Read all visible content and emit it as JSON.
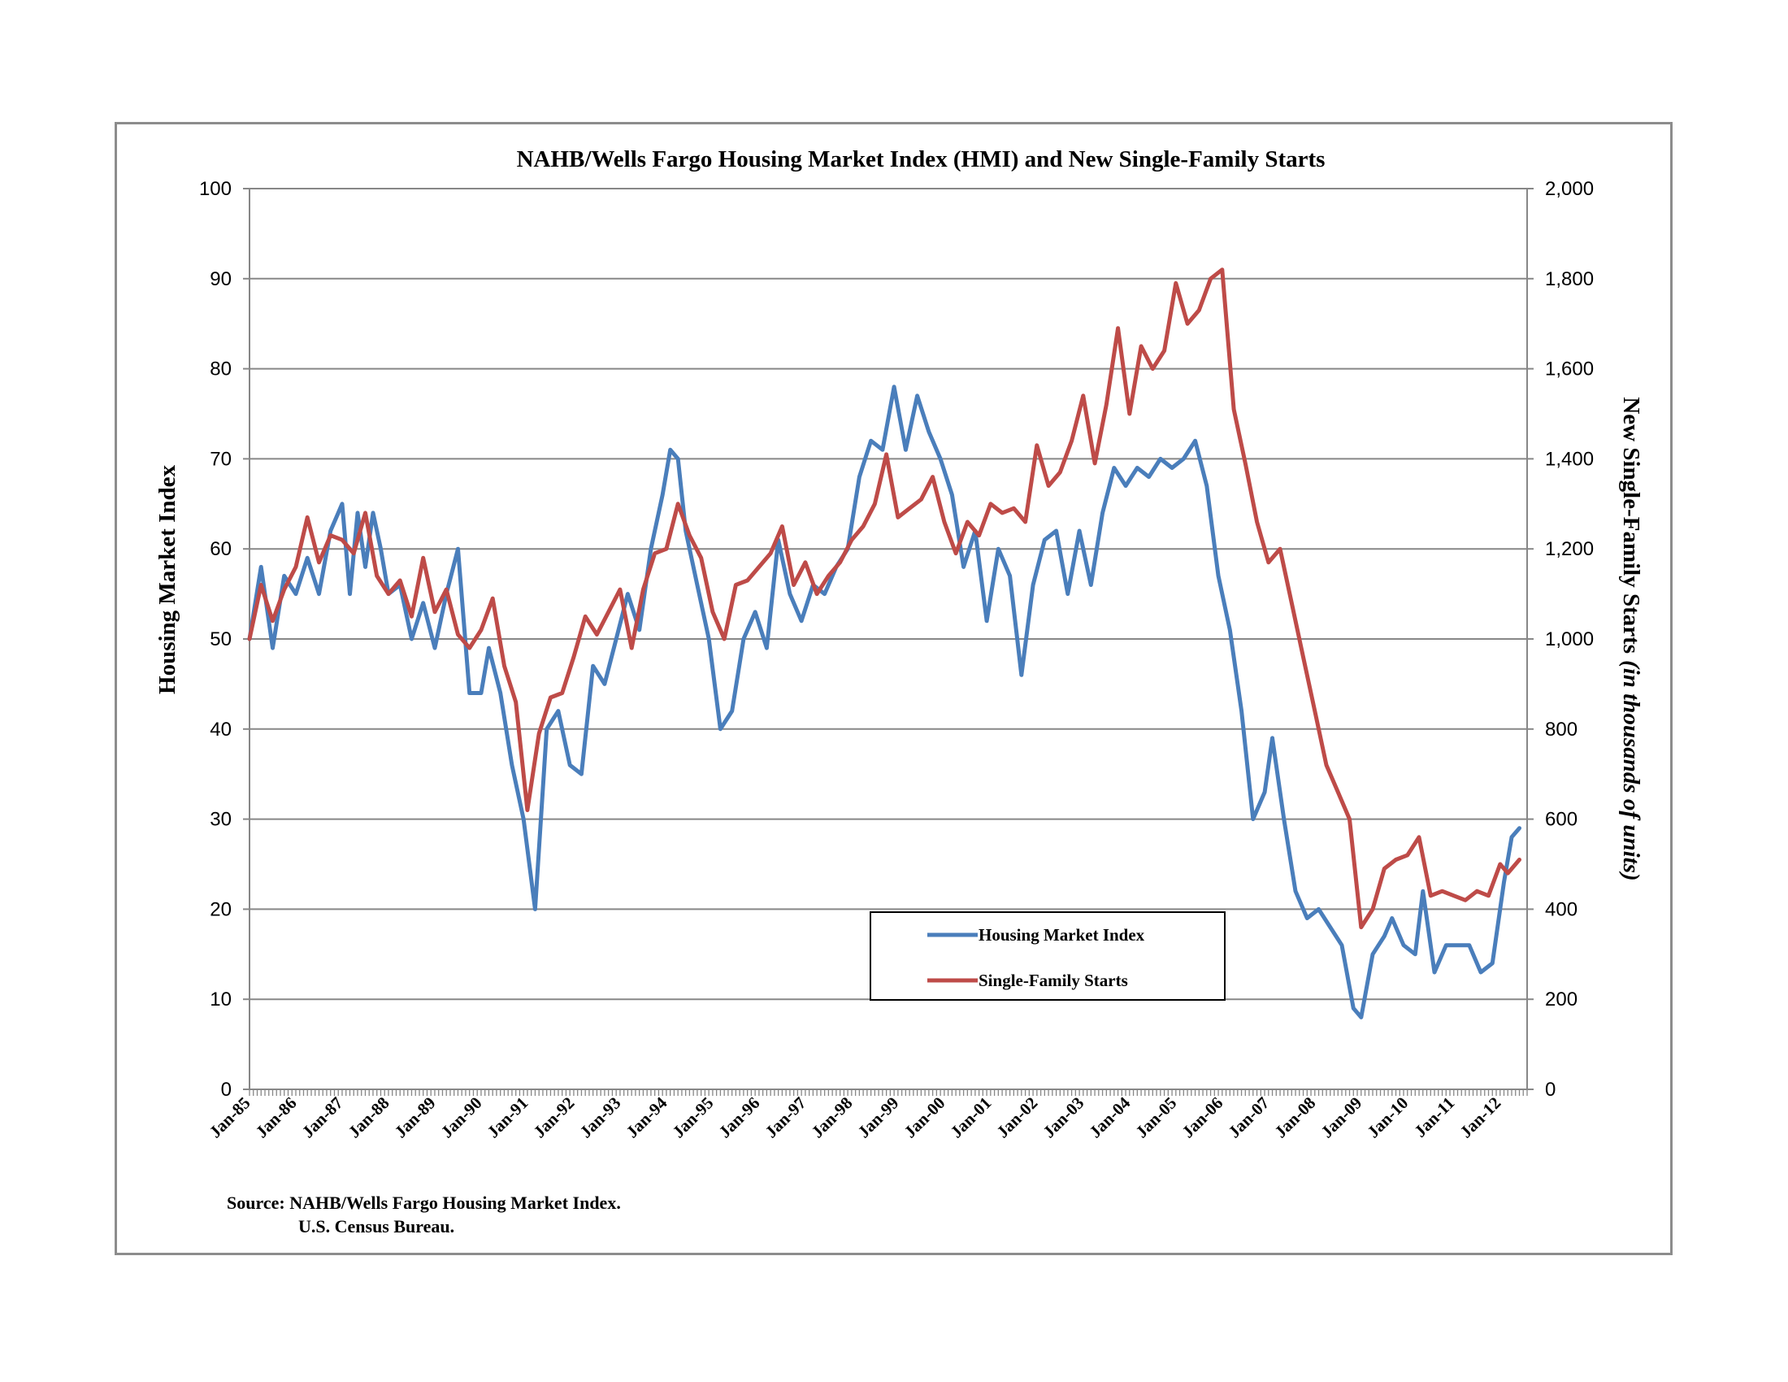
{
  "chart_data": {
    "type": "line",
    "title": "NAHB/Wells Fargo Housing Market Index (HMI) and New Single-Family Starts",
    "ylabel_left": "Housing Market Index",
    "ylabel_right_main": "New Single-Family Starts",
    "ylabel_right_italic": "(in thousands  of units)",
    "ylim_left": [
      0,
      100
    ],
    "ylim_right": [
      0,
      2000
    ],
    "yticks_left": [
      "0",
      "10",
      "20",
      "30",
      "40",
      "50",
      "60",
      "70",
      "80",
      "90",
      "100"
    ],
    "yticks_right": [
      "0",
      "200",
      "400",
      "600",
      "800",
      "1,000",
      "1,200",
      "1,400",
      "1,600",
      "1,800",
      "2,000"
    ],
    "x_categories": [
      "Jan-85",
      "Jan-86",
      "Jan-87",
      "Jan-88",
      "Jan-89",
      "Jan-90",
      "Jan-91",
      "Jan-92",
      "Jan-93",
      "Jan-94",
      "Jan-95",
      "Jan-96",
      "Jan-97",
      "Jan-98",
      "Jan-99",
      "Jan-00",
      "Jan-01",
      "Jan-02",
      "Jan-03",
      "Jan-04",
      "Jan-05",
      "Jan-06",
      "Jan-07",
      "Jan-08",
      "Jan-09",
      "Jan-10",
      "Jan-11",
      "Jan-12"
    ],
    "x_range": [
      "Jan-85",
      "Jun-12"
    ],
    "grid": "horizontal",
    "legend_position": "bottom-center",
    "series": [
      {
        "name": "Housing Market Index",
        "axis": "left",
        "color": "#4a7ebb",
        "points": [
          [
            "Jan-85",
            50
          ],
          [
            "Apr-85",
            58
          ],
          [
            "Jul-85",
            49
          ],
          [
            "Oct-85",
            57
          ],
          [
            "Jan-86",
            55
          ],
          [
            "Apr-86",
            59
          ],
          [
            "Jul-86",
            55
          ],
          [
            "Oct-86",
            62
          ],
          [
            "Jan-87",
            65
          ],
          [
            "Mar-87",
            55
          ],
          [
            "May-87",
            64
          ],
          [
            "Jul-87",
            58
          ],
          [
            "Sep-87",
            64
          ],
          [
            "Nov-87",
            60
          ],
          [
            "Jan-88",
            55
          ],
          [
            "Apr-88",
            56
          ],
          [
            "Jul-88",
            50
          ],
          [
            "Oct-88",
            54
          ],
          [
            "Jan-89",
            49
          ],
          [
            "Apr-89",
            55
          ],
          [
            "Jul-89",
            60
          ],
          [
            "Oct-89",
            44
          ],
          [
            "Jan-90",
            44
          ],
          [
            "Mar-90",
            49
          ],
          [
            "Jun-90",
            44
          ],
          [
            "Sep-90",
            36
          ],
          [
            "Dec-90",
            30
          ],
          [
            "Mar-91",
            20
          ],
          [
            "Jun-91",
            40
          ],
          [
            "Sep-91",
            42
          ],
          [
            "Dec-91",
            36
          ],
          [
            "Mar-92",
            35
          ],
          [
            "Jun-92",
            47
          ],
          [
            "Sep-92",
            45
          ],
          [
            "Dec-92",
            50
          ],
          [
            "Mar-93",
            55
          ],
          [
            "Jun-93",
            51
          ],
          [
            "Sep-93",
            60
          ],
          [
            "Dec-93",
            66
          ],
          [
            "Feb-94",
            71
          ],
          [
            "Apr-94",
            70
          ],
          [
            "Jun-94",
            62
          ],
          [
            "Sep-94",
            56
          ],
          [
            "Dec-94",
            50
          ],
          [
            "Mar-95",
            40
          ],
          [
            "Jun-95",
            42
          ],
          [
            "Sep-95",
            50
          ],
          [
            "Dec-95",
            53
          ],
          [
            "Mar-96",
            49
          ],
          [
            "Jun-96",
            61
          ],
          [
            "Sep-96",
            55
          ],
          [
            "Dec-96",
            52
          ],
          [
            "Mar-97",
            56
          ],
          [
            "Jun-97",
            55
          ],
          [
            "Sep-97",
            58
          ],
          [
            "Dec-97",
            60
          ],
          [
            "Mar-98",
            68
          ],
          [
            "Jun-98",
            72
          ],
          [
            "Sep-98",
            71
          ],
          [
            "Dec-98",
            78
          ],
          [
            "Mar-99",
            71
          ],
          [
            "Jun-99",
            77
          ],
          [
            "Sep-99",
            73
          ],
          [
            "Dec-99",
            70
          ],
          [
            "Mar-00",
            66
          ],
          [
            "Jun-00",
            58
          ],
          [
            "Sep-00",
            62
          ],
          [
            "Dec-00",
            52
          ],
          [
            "Mar-01",
            60
          ],
          [
            "Jun-01",
            57
          ],
          [
            "Sep-01",
            46
          ],
          [
            "Dec-01",
            56
          ],
          [
            "Mar-02",
            61
          ],
          [
            "Jun-02",
            62
          ],
          [
            "Sep-02",
            55
          ],
          [
            "Dec-02",
            62
          ],
          [
            "Mar-03",
            56
          ],
          [
            "Jun-03",
            64
          ],
          [
            "Sep-03",
            69
          ],
          [
            "Dec-03",
            67
          ],
          [
            "Mar-04",
            69
          ],
          [
            "Jun-04",
            68
          ],
          [
            "Sep-04",
            70
          ],
          [
            "Dec-04",
            69
          ],
          [
            "Mar-05",
            70
          ],
          [
            "Jun-05",
            72
          ],
          [
            "Sep-05",
            67
          ],
          [
            "Dec-05",
            57
          ],
          [
            "Mar-06",
            51
          ],
          [
            "Jun-06",
            42
          ],
          [
            "Sep-06",
            30
          ],
          [
            "Dec-06",
            33
          ],
          [
            "Feb-07",
            39
          ],
          [
            "May-07",
            30
          ],
          [
            "Aug-07",
            22
          ],
          [
            "Nov-07",
            19
          ],
          [
            "Feb-08",
            20
          ],
          [
            "May-08",
            18
          ],
          [
            "Aug-08",
            16
          ],
          [
            "Nov-08",
            9
          ],
          [
            "Jan-09",
            8
          ],
          [
            "Apr-09",
            15
          ],
          [
            "Jul-09",
            17
          ],
          [
            "Sep-09",
            19
          ],
          [
            "Dec-09",
            16
          ],
          [
            "Mar-10",
            15
          ],
          [
            "May-10",
            22
          ],
          [
            "Aug-10",
            13
          ],
          [
            "Nov-10",
            16
          ],
          [
            "Feb-11",
            16
          ],
          [
            "May-11",
            16
          ],
          [
            "Aug-11",
            13
          ],
          [
            "Nov-11",
            14
          ],
          [
            "Feb-12",
            23
          ],
          [
            "Apr-12",
            28
          ],
          [
            "Jun-12",
            29
          ]
        ]
      },
      {
        "name": "Single-Family Starts",
        "axis": "right",
        "color": "#be4b48",
        "points": [
          [
            "Jan-85",
            1000
          ],
          [
            "Apr-85",
            1120
          ],
          [
            "Jul-85",
            1040
          ],
          [
            "Oct-85",
            1110
          ],
          [
            "Jan-86",
            1160
          ],
          [
            "Apr-86",
            1270
          ],
          [
            "Jul-86",
            1170
          ],
          [
            "Oct-86",
            1230
          ],
          [
            "Jan-87",
            1220
          ],
          [
            "Apr-87",
            1190
          ],
          [
            "Jul-87",
            1280
          ],
          [
            "Oct-87",
            1140
          ],
          [
            "Jan-88",
            1100
          ],
          [
            "Apr-88",
            1130
          ],
          [
            "Jul-88",
            1050
          ],
          [
            "Oct-88",
            1180
          ],
          [
            "Jan-89",
            1060
          ],
          [
            "Apr-89",
            1110
          ],
          [
            "Jul-89",
            1010
          ],
          [
            "Oct-89",
            980
          ],
          [
            "Jan-90",
            1020
          ],
          [
            "Apr-90",
            1090
          ],
          [
            "Jul-90",
            940
          ],
          [
            "Oct-90",
            860
          ],
          [
            "Jan-91",
            620
          ],
          [
            "Apr-91",
            790
          ],
          [
            "Jul-91",
            870
          ],
          [
            "Oct-91",
            880
          ],
          [
            "Jan-92",
            960
          ],
          [
            "Apr-92",
            1050
          ],
          [
            "Jul-92",
            1010
          ],
          [
            "Oct-92",
            1060
          ],
          [
            "Jan-93",
            1110
          ],
          [
            "Apr-93",
            980
          ],
          [
            "Jul-93",
            1110
          ],
          [
            "Oct-93",
            1190
          ],
          [
            "Jan-94",
            1200
          ],
          [
            "Apr-94",
            1300
          ],
          [
            "Jul-94",
            1230
          ],
          [
            "Oct-94",
            1180
          ],
          [
            "Jan-95",
            1060
          ],
          [
            "Apr-95",
            1000
          ],
          [
            "Jul-95",
            1120
          ],
          [
            "Oct-95",
            1130
          ],
          [
            "Jan-96",
            1160
          ],
          [
            "Apr-96",
            1190
          ],
          [
            "Jul-96",
            1250
          ],
          [
            "Oct-96",
            1120
          ],
          [
            "Jan-97",
            1170
          ],
          [
            "Apr-97",
            1100
          ],
          [
            "Jul-97",
            1140
          ],
          [
            "Oct-97",
            1170
          ],
          [
            "Jan-98",
            1220
          ],
          [
            "Apr-98",
            1250
          ],
          [
            "Jul-98",
            1300
          ],
          [
            "Oct-98",
            1410
          ],
          [
            "Jan-99",
            1270
          ],
          [
            "Apr-99",
            1290
          ],
          [
            "Jul-99",
            1310
          ],
          [
            "Oct-99",
            1360
          ],
          [
            "Jan-00",
            1260
          ],
          [
            "Apr-00",
            1190
          ],
          [
            "Jul-00",
            1260
          ],
          [
            "Oct-00",
            1230
          ],
          [
            "Jan-01",
            1300
          ],
          [
            "Apr-01",
            1280
          ],
          [
            "Jul-01",
            1290
          ],
          [
            "Oct-01",
            1260
          ],
          [
            "Jan-02",
            1430
          ],
          [
            "Apr-02",
            1340
          ],
          [
            "Jul-02",
            1370
          ],
          [
            "Oct-02",
            1440
          ],
          [
            "Jan-03",
            1540
          ],
          [
            "Apr-03",
            1390
          ],
          [
            "Jul-03",
            1520
          ],
          [
            "Oct-03",
            1690
          ],
          [
            "Jan-04",
            1500
          ],
          [
            "Apr-04",
            1650
          ],
          [
            "Jul-04",
            1600
          ],
          [
            "Oct-04",
            1640
          ],
          [
            "Jan-05",
            1790
          ],
          [
            "Apr-05",
            1700
          ],
          [
            "Jul-05",
            1730
          ],
          [
            "Oct-05",
            1800
          ],
          [
            "Jan-06",
            1820
          ],
          [
            "Apr-06",
            1510
          ],
          [
            "Jul-06",
            1390
          ],
          [
            "Oct-06",
            1260
          ],
          [
            "Jan-07",
            1170
          ],
          [
            "Apr-07",
            1200
          ],
          [
            "Jul-07",
            1080
          ],
          [
            "Oct-07",
            960
          ],
          [
            "Jan-08",
            840
          ],
          [
            "Apr-08",
            720
          ],
          [
            "Jul-08",
            660
          ],
          [
            "Oct-08",
            600
          ],
          [
            "Jan-09",
            360
          ],
          [
            "Apr-09",
            400
          ],
          [
            "Jul-09",
            490
          ],
          [
            "Oct-09",
            510
          ],
          [
            "Jan-10",
            520
          ],
          [
            "Apr-10",
            560
          ],
          [
            "Jul-10",
            430
          ],
          [
            "Oct-10",
            440
          ],
          [
            "Jan-11",
            430
          ],
          [
            "Apr-11",
            420
          ],
          [
            "Jul-11",
            440
          ],
          [
            "Oct-11",
            430
          ],
          [
            "Jan-12",
            500
          ],
          [
            "Mar-12",
            480
          ],
          [
            "Jun-12",
            510
          ]
        ]
      }
    ],
    "source_lines": [
      "Source: NAHB/Wells Fargo Housing Market Index.",
      "U.S. Census Bureau."
    ]
  }
}
